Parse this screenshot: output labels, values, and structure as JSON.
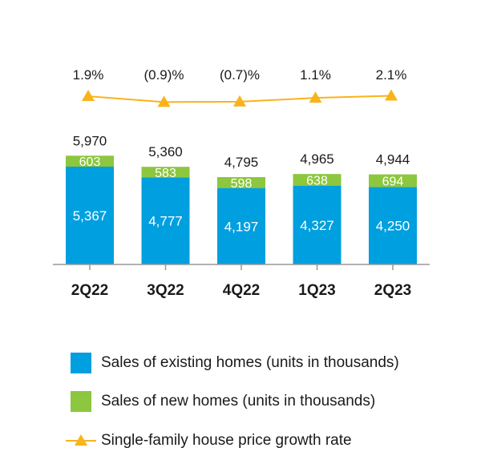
{
  "chart_data": {
    "type": "bar",
    "stacked": true,
    "categories": [
      "2Q22",
      "3Q22",
      "4Q22",
      "1Q23",
      "2Q23"
    ],
    "series": [
      {
        "name": "Sales of existing homes (units in thousands)",
        "type": "bar",
        "color": "#009fdf",
        "values": [
          5367,
          4777,
          4197,
          4327,
          4250
        ],
        "labels": [
          "5,367",
          "4,777",
          "4,197",
          "4,327",
          "4,250"
        ]
      },
      {
        "name": "Sales of new homes (units in thousands)",
        "type": "bar",
        "color": "#8dc63f",
        "values": [
          603,
          583,
          598,
          638,
          694
        ],
        "labels": [
          "603",
          "583",
          "598",
          "638",
          "694"
        ]
      },
      {
        "name": "Single-family house price growth rate",
        "type": "line",
        "color": "#f9b31b",
        "marker": "triangle",
        "values": [
          1.9,
          -0.9,
          -0.7,
          1.1,
          2.1
        ],
        "labels": [
          "1.9%",
          "(0.9)%",
          "(0.7)%",
          "1.1%",
          "2.1%"
        ]
      }
    ],
    "totals": [
      5970,
      5360,
      4795,
      4965,
      4944
    ],
    "total_labels": [
      "5,970",
      "5,360",
      "4,795",
      "4,965",
      "4,944"
    ],
    "legend_position": "bottom",
    "grid": false
  }
}
